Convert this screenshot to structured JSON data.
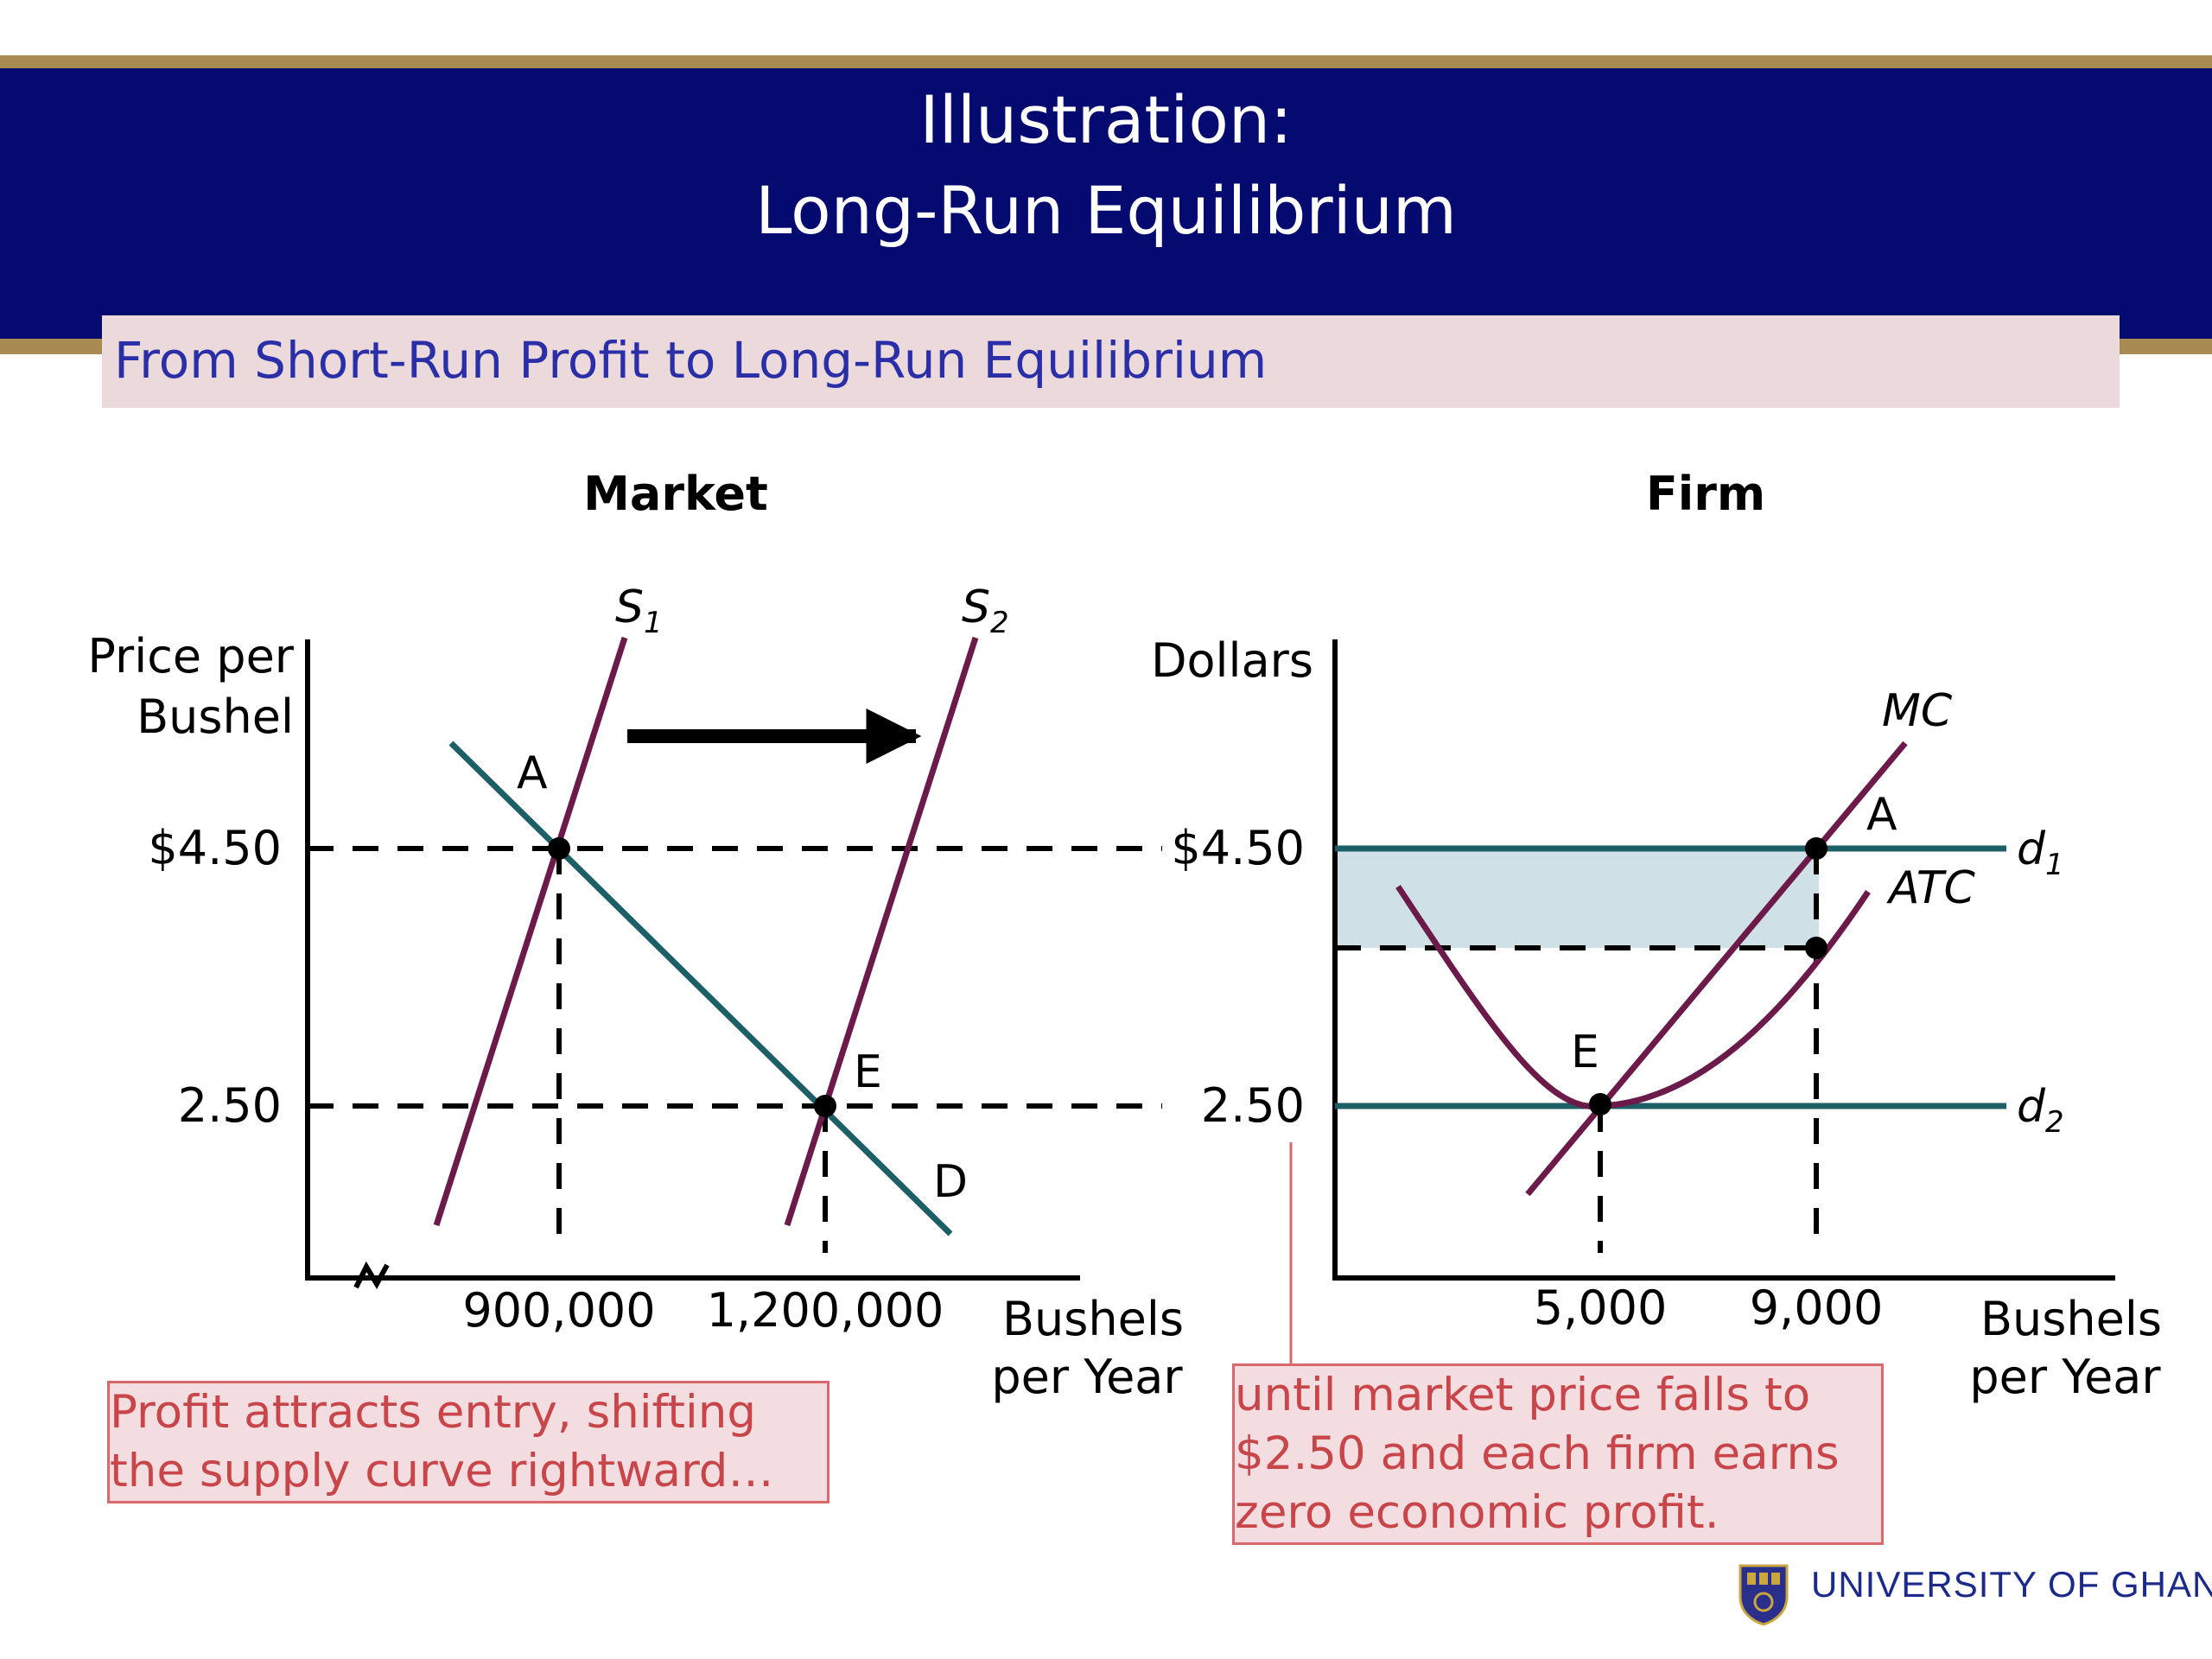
{
  "slide": {
    "title_line1": "Illustration:",
    "title_line2": "Long-Run Equilibrium",
    "subtitle": "From Short-Run Profit to Long-Run Equilibrium"
  },
  "market": {
    "heading": "Market",
    "y_axis_label": [
      "Price per",
      "Bushel"
    ],
    "x_axis_label": [
      "Bushels",
      "per Year"
    ],
    "price_ticks": [
      "$4.50",
      "2.50"
    ],
    "quantity_ticks": [
      "900,000",
      "1,200,000"
    ],
    "curves": {
      "supply1": "S",
      "supply1_sub": "1",
      "supply2": "S",
      "supply2_sub": "2",
      "demand": "D"
    },
    "points": {
      "a": "A",
      "e": "E"
    }
  },
  "firm": {
    "heading": "Firm",
    "y_axis_label": "Dollars",
    "x_axis_label": [
      "Bushels",
      "per Year"
    ],
    "price_ticks": [
      "$4.50",
      "2.50"
    ],
    "quantity_ticks": [
      "5,000",
      "9,000"
    ],
    "curves": {
      "mc": "MC",
      "atc": "ATC",
      "d1": "d",
      "d1_sub": "1",
      "d2": "d",
      "d2_sub": "2"
    },
    "points": {
      "a": "A",
      "e": "E"
    }
  },
  "notes": {
    "left": [
      "Profit attracts entry, shifting",
      "the supply curve rightward…"
    ],
    "right": [
      "until market price falls to",
      "$2.50 and each firm earns",
      "zero economic profit."
    ]
  },
  "footer": {
    "logo": "university-crest-icon",
    "institution": "UNIVERSITY OF GHANA"
  },
  "colors": {
    "title_band": "#050a70",
    "gold": "#a88b52",
    "supply": "#6b1a4a",
    "demand": "#1d5f66",
    "profit_area": "#cfe1e6",
    "note_text": "#c8454a"
  }
}
